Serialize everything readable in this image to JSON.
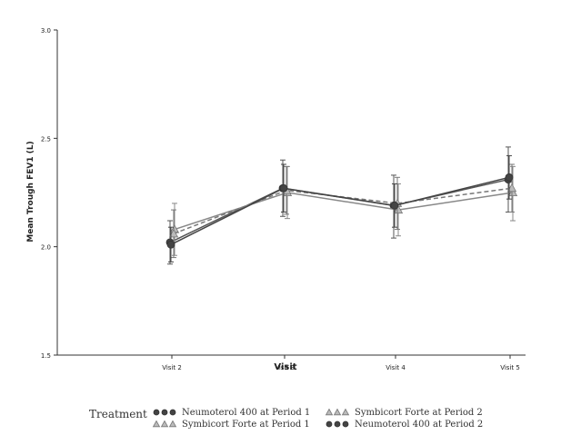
{
  "chart_data": {
    "type": "line",
    "xlabel": "Visit",
    "ylabel": "Mean Trough FEV1 (L)",
    "categories": [
      "Visit 2",
      "Visit 3",
      "Visit 4",
      "Visit 5"
    ],
    "ylim": [
      1.5,
      3.0
    ],
    "yticks": [
      "1.5",
      "2.0",
      "2.5",
      "3.0"
    ],
    "grid": false,
    "legend_title": "Treatment",
    "legend_position": "bottom",
    "series": [
      {
        "name": "Neumoterol 400 at Period 1",
        "marker": "circle",
        "line": "solid",
        "color": "#555555",
        "values": [
          2.02,
          2.27,
          2.19,
          2.31
        ],
        "err_low": [
          1.92,
          2.14,
          2.04,
          2.16
        ],
        "err_high": [
          2.12,
          2.4,
          2.33,
          2.46
        ]
      },
      {
        "name": "Symbicort Forte at Period 1",
        "marker": "triangle",
        "line": "solid",
        "color": "#888888",
        "values": [
          2.08,
          2.25,
          2.17,
          2.25
        ],
        "err_low": [
          1.96,
          2.13,
          2.05,
          2.12
        ],
        "err_high": [
          2.2,
          2.37,
          2.29,
          2.37
        ]
      },
      {
        "name": "Symbicort Forte at Period 2",
        "marker": "triangle",
        "line": "dashed",
        "color": "#777777",
        "values": [
          2.06,
          2.26,
          2.2,
          2.27
        ],
        "err_low": [
          1.95,
          2.15,
          2.08,
          2.16
        ],
        "err_high": [
          2.17,
          2.37,
          2.32,
          2.38
        ]
      },
      {
        "name": "Neumoterol 400 at Period 2",
        "marker": "circle",
        "line": "solid",
        "color": "#444444",
        "values": [
          2.01,
          2.27,
          2.19,
          2.32
        ],
        "err_low": [
          1.93,
          2.16,
          2.09,
          2.22
        ],
        "err_high": [
          2.09,
          2.38,
          2.29,
          2.42
        ]
      }
    ]
  }
}
